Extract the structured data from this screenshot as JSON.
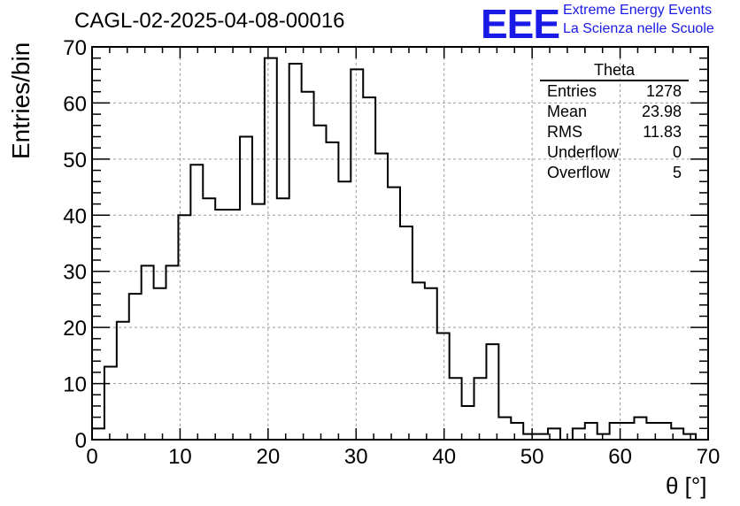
{
  "chart_data": {
    "type": "bar",
    "title": "CAGL-02-2025-04-08-00016",
    "xlabel": "θ [°]",
    "ylabel": "Entries/bin",
    "xlim": [
      0,
      70
    ],
    "ylim": [
      0,
      70
    ],
    "bin_width": 1.4,
    "x_ticks": [
      0,
      10,
      20,
      30,
      40,
      50,
      60,
      70
    ],
    "y_ticks": [
      0,
      10,
      20,
      30,
      40,
      50,
      60,
      70
    ],
    "grid": true,
    "values": [
      2,
      13,
      21,
      26,
      31,
      27,
      31,
      40,
      49,
      43,
      41,
      41,
      54,
      42,
      68,
      43,
      67,
      62,
      56,
      53,
      46,
      66,
      61,
      51,
      45,
      38,
      28,
      27,
      19,
      11,
      6,
      11,
      17,
      4,
      3,
      1,
      1,
      2,
      0,
      2,
      3,
      1,
      3,
      3,
      4,
      3,
      3,
      2,
      1,
      0
    ]
  },
  "stats_box": {
    "title": "Theta",
    "rows": [
      {
        "label": "Entries",
        "value": "1278"
      },
      {
        "label": "Mean",
        "value": "23.98"
      },
      {
        "label": "RMS",
        "value": "11.83"
      },
      {
        "label": "Underflow",
        "value": "0"
      },
      {
        "label": "Overflow",
        "value": "5"
      }
    ]
  },
  "logo": {
    "text": "EEE",
    "line1": "Extreme Energy Events",
    "line2": "La Scienza nelle Scuole",
    "color": "#1a1ae6"
  }
}
